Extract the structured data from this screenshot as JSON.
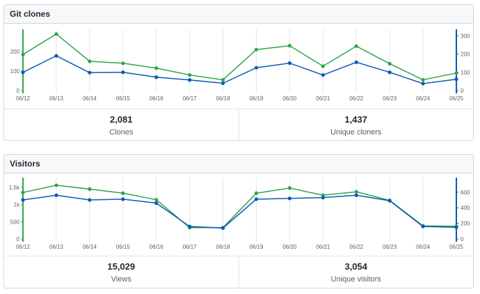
{
  "colors": {
    "green": "#2ea44f",
    "blue": "#0a5ab6",
    "grid": "#e1e4e8",
    "label": "#586069"
  },
  "clones_panel": {
    "title": "Git clones",
    "stats": [
      {
        "value": "2,081",
        "label": "Clones"
      },
      {
        "value": "1,437",
        "label": "Unique cloners"
      }
    ]
  },
  "visitors_panel": {
    "title": "Visitors",
    "stats": [
      {
        "value": "15,029",
        "label": "Views"
      },
      {
        "value": "3,054",
        "label": "Unique visitors"
      }
    ]
  },
  "chart_data": [
    {
      "type": "line",
      "categories": [
        "06/12",
        "06/13",
        "06/14",
        "06/15",
        "06/16",
        "06/17",
        "06/18",
        "06/19",
        "06/20",
        "06/21",
        "06/22",
        "06/23",
        "06/24",
        "06/25"
      ],
      "series": [
        {
          "axis": "left",
          "color": "#2ea44f",
          "values": [
            185,
            290,
            150,
            140,
            115,
            80,
            55,
            210,
            230,
            125,
            228,
            138,
            55,
            90
          ]
        },
        {
          "axis": "right",
          "color": "#0a5ab6",
          "values": [
            100,
            190,
            98,
            100,
            73,
            58,
            40,
            125,
            150,
            85,
            155,
            100,
            38,
            62
          ]
        }
      ],
      "ylim_left": [
        0,
        300
      ],
      "yticks_left": [
        0,
        100,
        200
      ],
      "ytick_labels_left": [
        "0",
        "100",
        "200"
      ],
      "ylim_right": [
        0,
        320
      ],
      "yticks_right": [
        0,
        100,
        200,
        300
      ],
      "ytick_labels_right": [
        "0",
        "100",
        "200",
        "300"
      ],
      "grid": "vertical"
    },
    {
      "type": "line",
      "categories": [
        "06/12",
        "06/13",
        "06/14",
        "06/15",
        "06/16",
        "06/17",
        "06/18",
        "06/19",
        "06/20",
        "06/21",
        "06/22",
        "06/23",
        "06/24",
        "06/25"
      ],
      "series": [
        {
          "axis": "left",
          "color": "#2ea44f",
          "values": [
            1350,
            1560,
            1450,
            1330,
            1140,
            330,
            330,
            1330,
            1480,
            1270,
            1370,
            1120,
            380,
            370
          ]
        },
        {
          "axis": "right",
          "color": "#0a5ab6",
          "values": [
            500,
            560,
            500,
            510,
            460,
            160,
            140,
            510,
            520,
            530,
            560,
            490,
            160,
            150
          ]
        }
      ],
      "ylim_left": [
        0,
        1700
      ],
      "yticks_left": [
        0,
        500,
        1000,
        1500
      ],
      "ytick_labels_left": [
        "0",
        "500",
        "1k",
        "1.5k"
      ],
      "ylim_right": [
        0,
        750
      ],
      "yticks_right": [
        0,
        200,
        400,
        600
      ],
      "ytick_labels_right": [
        "0",
        "200",
        "400",
        "600"
      ],
      "grid": "vertical"
    }
  ]
}
